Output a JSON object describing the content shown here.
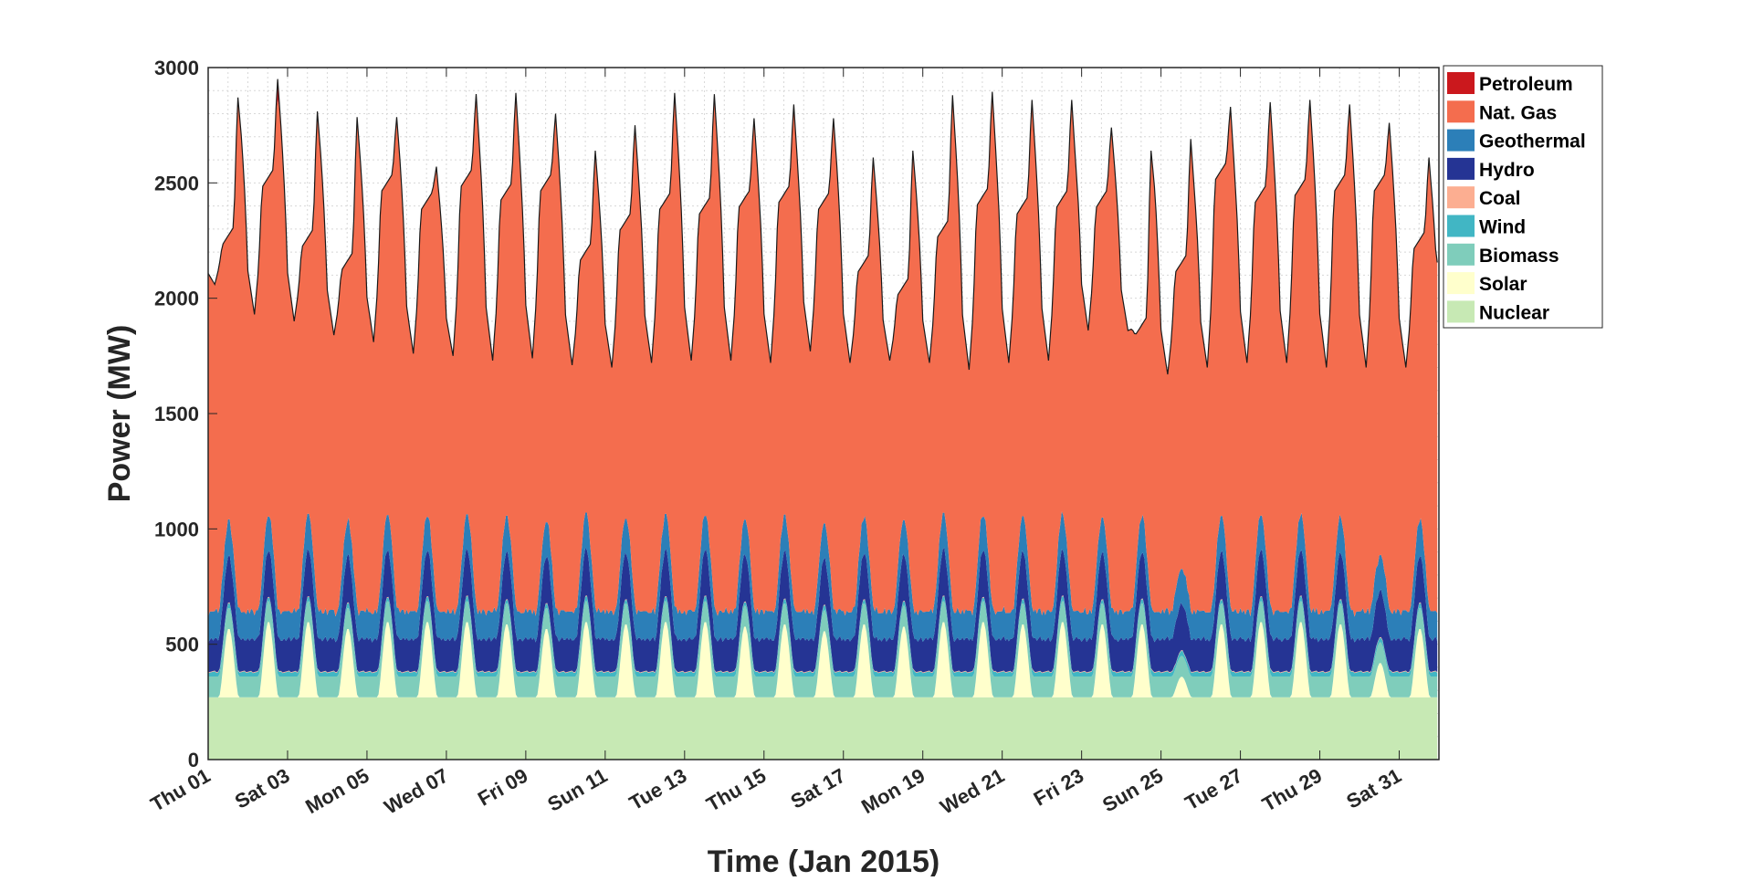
{
  "chart_data": {
    "type": "area",
    "stacked": true,
    "xlabel": "Time (Jan 2015)",
    "ylabel": "Power (MW)",
    "ylim": [
      0,
      3000
    ],
    "yticks": [
      0,
      500,
      1000,
      1500,
      2000,
      2500,
      3000
    ],
    "xlim_days": [
      1,
      32
    ],
    "xtick_labels": [
      "Thu 01",
      "Sat 03",
      "Mon 05",
      "Wed 07",
      "Fri 09",
      "Sun 11",
      "Tue 13",
      "Thu 15",
      "Sat 17",
      "Mon 19",
      "Wed 21",
      "Fri 23",
      "Sun 25",
      "Tue 27",
      "Thu 29",
      "Sat 31"
    ],
    "grid": true,
    "minor_grid": true,
    "legend_position": "outside-top-right",
    "resolution": "hourly",
    "days": [
      1,
      2,
      3,
      4,
      5,
      6,
      7,
      8,
      9,
      10,
      11,
      12,
      13,
      14,
      15,
      16,
      17,
      18,
      19,
      20,
      21,
      22,
      23,
      24,
      25,
      26,
      27,
      28,
      29,
      30,
      31
    ],
    "daily_total_MW": {
      "overnight_min": [
        2060,
        1930,
        1900,
        1840,
        1810,
        1760,
        1750,
        1730,
        1740,
        1710,
        1700,
        1720,
        1730,
        1730,
        1720,
        1770,
        1720,
        1730,
        1720,
        1690,
        1720,
        1730,
        1860,
        1860,
        1670,
        1700,
        1720,
        1720,
        1700,
        1700,
        1700
      ],
      "midday": [
        2270,
        2520,
        2260,
        2160,
        2500,
        2420,
        2520,
        2460,
        2500,
        2200,
        2330,
        2420,
        2400,
        2430,
        2450,
        2420,
        2150,
        2050,
        2300,
        2440,
        2400,
        2430,
        2430,
        1880,
        2150,
        2550,
        2450,
        2480,
        2500,
        2500,
        2250
      ],
      "evening_peak": [
        2870,
        2950,
        2810,
        2785,
        2785,
        2570,
        2885,
        2890,
        2800,
        2640,
        2750,
        2890,
        2885,
        2780,
        2840,
        2780,
        2610,
        2640,
        2880,
        2895,
        2860,
        2860,
        2740,
        2640,
        2690,
        2830,
        2850,
        2860,
        2840,
        2760,
        2610
      ]
    },
    "series": [
      {
        "name": "Nuclear",
        "color": "#c7e9b4",
        "base_MW": 270
      },
      {
        "name": "Solar",
        "color": "#ffffcc",
        "base_MW": 0,
        "daily_noon_peak_MW": [
          300,
          330,
          330,
          300,
          330,
          330,
          330,
          320,
          300,
          330,
          320,
          330,
          330,
          310,
          320,
          290,
          320,
          310,
          330,
          330,
          320,
          330,
          320,
          320,
          90,
          320,
          330,
          330,
          320,
          150,
          300
        ]
      },
      {
        "name": "Biomass",
        "color": "#7fcdbb",
        "base_MW": 90
      },
      {
        "name": "Wind",
        "color": "#41b6c4",
        "base_MW": 15
      },
      {
        "name": "Coal",
        "color": "#fcae91",
        "base_MW": 3
      },
      {
        "name": "Hydro",
        "color": "#253494",
        "base_MW": 140,
        "midday_extra_MW": 60
      },
      {
        "name": "Geothermal",
        "color": "#2c7fb8",
        "base_MW": 120
      },
      {
        "name": "Nat. Gas",
        "color": "#f46d4e",
        "note": "remainder of total"
      },
      {
        "name": "Petroleum",
        "color": "#cb181d",
        "base_MW": 0,
        "daily_peak_MW": [
          0,
          90,
          0,
          0,
          0,
          0,
          20,
          10,
          0,
          0,
          0,
          0,
          25,
          0,
          0,
          0,
          0,
          0,
          0,
          0,
          0,
          0,
          0,
          0,
          0,
          0,
          0,
          0,
          0,
          0,
          0
        ]
      }
    ]
  },
  "legend": {
    "items": [
      {
        "label": "Petroleum",
        "color": "#cb181d"
      },
      {
        "label": "Nat. Gas",
        "color": "#f46d4e"
      },
      {
        "label": "Geothermal",
        "color": "#2c7fb8"
      },
      {
        "label": "Hydro",
        "color": "#253494"
      },
      {
        "label": "Coal",
        "color": "#fcae91"
      },
      {
        "label": "Wind",
        "color": "#41b6c4"
      },
      {
        "label": "Biomass",
        "color": "#7fcdbb"
      },
      {
        "label": "Solar",
        "color": "#ffffcc"
      },
      {
        "label": "Nuclear",
        "color": "#c7e9b4"
      }
    ]
  }
}
